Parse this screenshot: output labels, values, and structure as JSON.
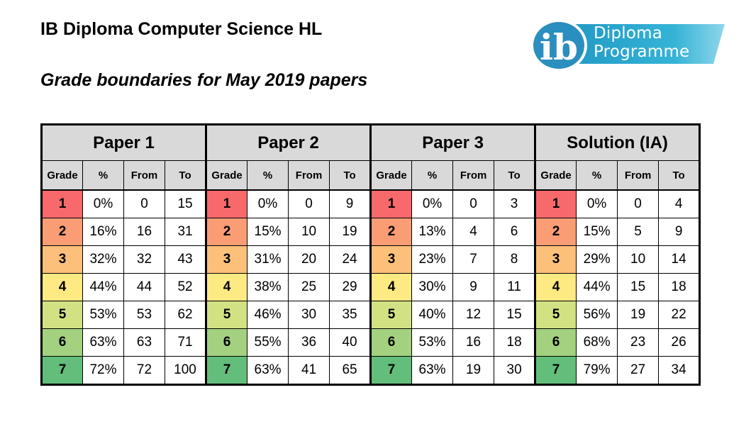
{
  "title": "IB Diploma Computer Science HL",
  "subtitle": "Grade boundaries for May 2019 papers",
  "logo": {
    "mark": "ib",
    "line1": "Diploma",
    "line2": "Programme",
    "colors": {
      "band": "#2aa9cc",
      "band_light": "#7fd0e6",
      "mark": "#2a8fbf"
    }
  },
  "grade_colors": {
    "1": "#f8696b",
    "2": "#fa9d75",
    "3": "#fcc07b",
    "4": "#feea83",
    "5": "#d2e283",
    "6": "#a3d17f",
    "7": "#63be7b"
  },
  "columns": [
    "Grade",
    "%",
    "From",
    "To"
  ],
  "papers": [
    {
      "name": "Paper 1",
      "rows": [
        {
          "grade": "1",
          "pct": "0%",
          "from": "0",
          "to": "15"
        },
        {
          "grade": "2",
          "pct": "16%",
          "from": "16",
          "to": "31"
        },
        {
          "grade": "3",
          "pct": "32%",
          "from": "32",
          "to": "43"
        },
        {
          "grade": "4",
          "pct": "44%",
          "from": "44",
          "to": "52"
        },
        {
          "grade": "5",
          "pct": "53%",
          "from": "53",
          "to": "62"
        },
        {
          "grade": "6",
          "pct": "63%",
          "from": "63",
          "to": "71"
        },
        {
          "grade": "7",
          "pct": "72%",
          "from": "72",
          "to": "100"
        }
      ]
    },
    {
      "name": "Paper 2",
      "rows": [
        {
          "grade": "1",
          "pct": "0%",
          "from": "0",
          "to": "9"
        },
        {
          "grade": "2",
          "pct": "15%",
          "from": "10",
          "to": "19"
        },
        {
          "grade": "3",
          "pct": "31%",
          "from": "20",
          "to": "24"
        },
        {
          "grade": "4",
          "pct": "38%",
          "from": "25",
          "to": "29"
        },
        {
          "grade": "5",
          "pct": "46%",
          "from": "30",
          "to": "35"
        },
        {
          "grade": "6",
          "pct": "55%",
          "from": "36",
          "to": "40"
        },
        {
          "grade": "7",
          "pct": "63%",
          "from": "41",
          "to": "65"
        }
      ]
    },
    {
      "name": "Paper 3",
      "rows": [
        {
          "grade": "1",
          "pct": "0%",
          "from": "0",
          "to": "3"
        },
        {
          "grade": "2",
          "pct": "13%",
          "from": "4",
          "to": "6"
        },
        {
          "grade": "3",
          "pct": "23%",
          "from": "7",
          "to": "8"
        },
        {
          "grade": "4",
          "pct": "30%",
          "from": "9",
          "to": "11"
        },
        {
          "grade": "5",
          "pct": "40%",
          "from": "12",
          "to": "15"
        },
        {
          "grade": "6",
          "pct": "53%",
          "from": "16",
          "to": "18"
        },
        {
          "grade": "7",
          "pct": "63%",
          "from": "19",
          "to": "30"
        }
      ]
    },
    {
      "name": "Solution (IA)",
      "rows": [
        {
          "grade": "1",
          "pct": "0%",
          "from": "0",
          "to": "4"
        },
        {
          "grade": "2",
          "pct": "15%",
          "from": "5",
          "to": "9"
        },
        {
          "grade": "3",
          "pct": "29%",
          "from": "10",
          "to": "14"
        },
        {
          "grade": "4",
          "pct": "44%",
          "from": "15",
          "to": "18"
        },
        {
          "grade": "5",
          "pct": "56%",
          "from": "19",
          "to": "22"
        },
        {
          "grade": "6",
          "pct": "68%",
          "from": "23",
          "to": "26"
        },
        {
          "grade": "7",
          "pct": "79%",
          "from": "27",
          "to": "34"
        }
      ]
    }
  ]
}
